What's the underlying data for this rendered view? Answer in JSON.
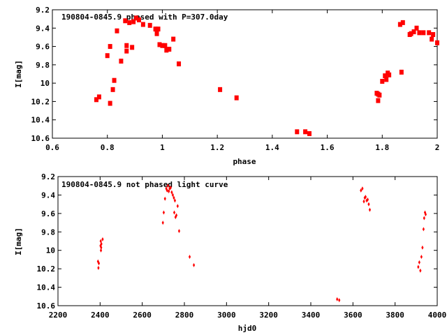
{
  "chart_data": [
    {
      "type": "scatter",
      "title": "190804-0845.9 phased with P=307.0day",
      "xlabel": "phase",
      "ylabel": "I[mag]",
      "xlim": [
        0.6,
        2.0
      ],
      "ylim": [
        10.6,
        9.2
      ],
      "y_inverted": true,
      "grid": false,
      "marker_color": "#ff0000",
      "marker": "square",
      "x_ticks": [
        "0.6",
        "0.8",
        "1",
        "1.2",
        "1.4",
        "1.6",
        "1.8",
        "2"
      ],
      "y_ticks": [
        "9.2",
        "9.4",
        "9.6",
        "9.8",
        "10",
        "10.2",
        "10.4",
        "10.6"
      ],
      "x_tick_values": [
        0.6,
        0.8,
        1.0,
        1.2,
        1.4,
        1.6,
        1.8,
        2.0
      ],
      "y_tick_values": [
        9.2,
        9.4,
        9.6,
        9.8,
        10.0,
        10.2,
        10.4,
        10.6
      ],
      "series": [
        {
          "x": [
            0.76,
            0.77,
            0.8,
            0.81,
            0.81,
            0.82,
            0.825,
            0.835,
            0.85,
            0.865,
            0.87,
            0.87,
            0.88,
            0.89,
            0.895,
            0.905,
            0.915,
            0.93,
            0.955,
            0.975,
            0.98,
            0.985,
            0.99,
            1.0,
            1.01,
            1.015,
            1.025,
            1.04,
            1.06,
            1.21,
            1.27,
            1.49,
            1.52,
            1.535,
            1.78,
            1.785,
            1.785,
            1.79,
            1.8,
            1.81,
            1.815,
            1.82,
            1.825,
            1.865,
            1.87,
            1.875,
            1.9,
            1.905,
            1.915,
            1.925,
            1.935,
            1.95,
            1.97,
            1.98,
            1.985,
            2.0
          ],
          "y": [
            10.18,
            10.15,
            9.7,
            10.22,
            9.6,
            10.07,
            9.97,
            9.43,
            9.76,
            9.32,
            9.65,
            9.59,
            9.34,
            9.61,
            9.33,
            9.29,
            9.31,
            9.36,
            9.37,
            9.41,
            9.46,
            9.41,
            9.58,
            9.59,
            9.59,
            9.64,
            9.63,
            9.52,
            9.79,
            10.07,
            10.16,
            10.53,
            10.53,
            10.55,
            10.11,
            10.19,
            10.12,
            10.13,
            9.98,
            9.92,
            9.96,
            9.89,
            9.91,
            9.36,
            9.88,
            9.34,
            9.47,
            9.46,
            9.44,
            9.4,
            9.45,
            9.45,
            9.45,
            9.52,
            9.47,
            9.56
          ]
        }
      ]
    },
    {
      "type": "scatter",
      "title": "190804-0845.9 not phased light curve",
      "xlabel": "hjd0",
      "ylabel": "I[mag]",
      "xlim": [
        2200,
        4000
      ],
      "ylim": [
        10.6,
        9.2
      ],
      "y_inverted": true,
      "grid": false,
      "marker_color": "#ff0000",
      "marker": "diamond",
      "x_ticks": [
        "2200",
        "2400",
        "2600",
        "2800",
        "3000",
        "3200",
        "3400",
        "3600",
        "3800",
        "4000"
      ],
      "y_ticks": [
        "9.2",
        "9.4",
        "9.6",
        "9.8",
        "10",
        "10.2",
        "10.4",
        "10.6"
      ],
      "x_tick_values": [
        2200,
        2400,
        2600,
        2800,
        3000,
        3200,
        3400,
        3600,
        3800,
        4000
      ],
      "y_tick_values": [
        9.2,
        9.4,
        9.6,
        9.8,
        10.0,
        10.2,
        10.4,
        10.6
      ],
      "series": [
        {
          "x": [
            2390,
            2392,
            2394,
            2402,
            2403,
            2404,
            2405,
            2406,
            2412,
            2698,
            2702,
            2708,
            2714,
            2718,
            2722,
            2726,
            2730,
            2735,
            2740,
            2745,
            2750,
            2752,
            2755,
            2758,
            2762,
            2768,
            2775,
            2825,
            2845,
            3525,
            3535,
            3638,
            3645,
            3652,
            3656,
            3660,
            3665,
            3670,
            3675,
            3680,
            3910,
            3915,
            3920,
            3925,
            3930,
            3935,
            3938,
            3942,
            3945
          ],
          "y": [
            10.12,
            10.19,
            10.14,
            9.95,
            9.9,
            10.0,
            9.97,
            9.93,
            9.88,
            9.7,
            9.59,
            9.44,
            9.33,
            9.35,
            9.3,
            9.36,
            9.33,
            9.32,
            9.37,
            9.4,
            9.43,
            9.59,
            9.46,
            9.64,
            9.62,
            9.52,
            9.79,
            10.07,
            10.16,
            10.53,
            10.54,
            9.35,
            9.33,
            9.47,
            9.43,
            9.42,
            9.46,
            9.45,
            9.5,
            9.56,
            10.18,
            10.13,
            10.22,
            10.07,
            9.97,
            9.77,
            9.65,
            9.59,
            9.61
          ]
        }
      ]
    }
  ]
}
